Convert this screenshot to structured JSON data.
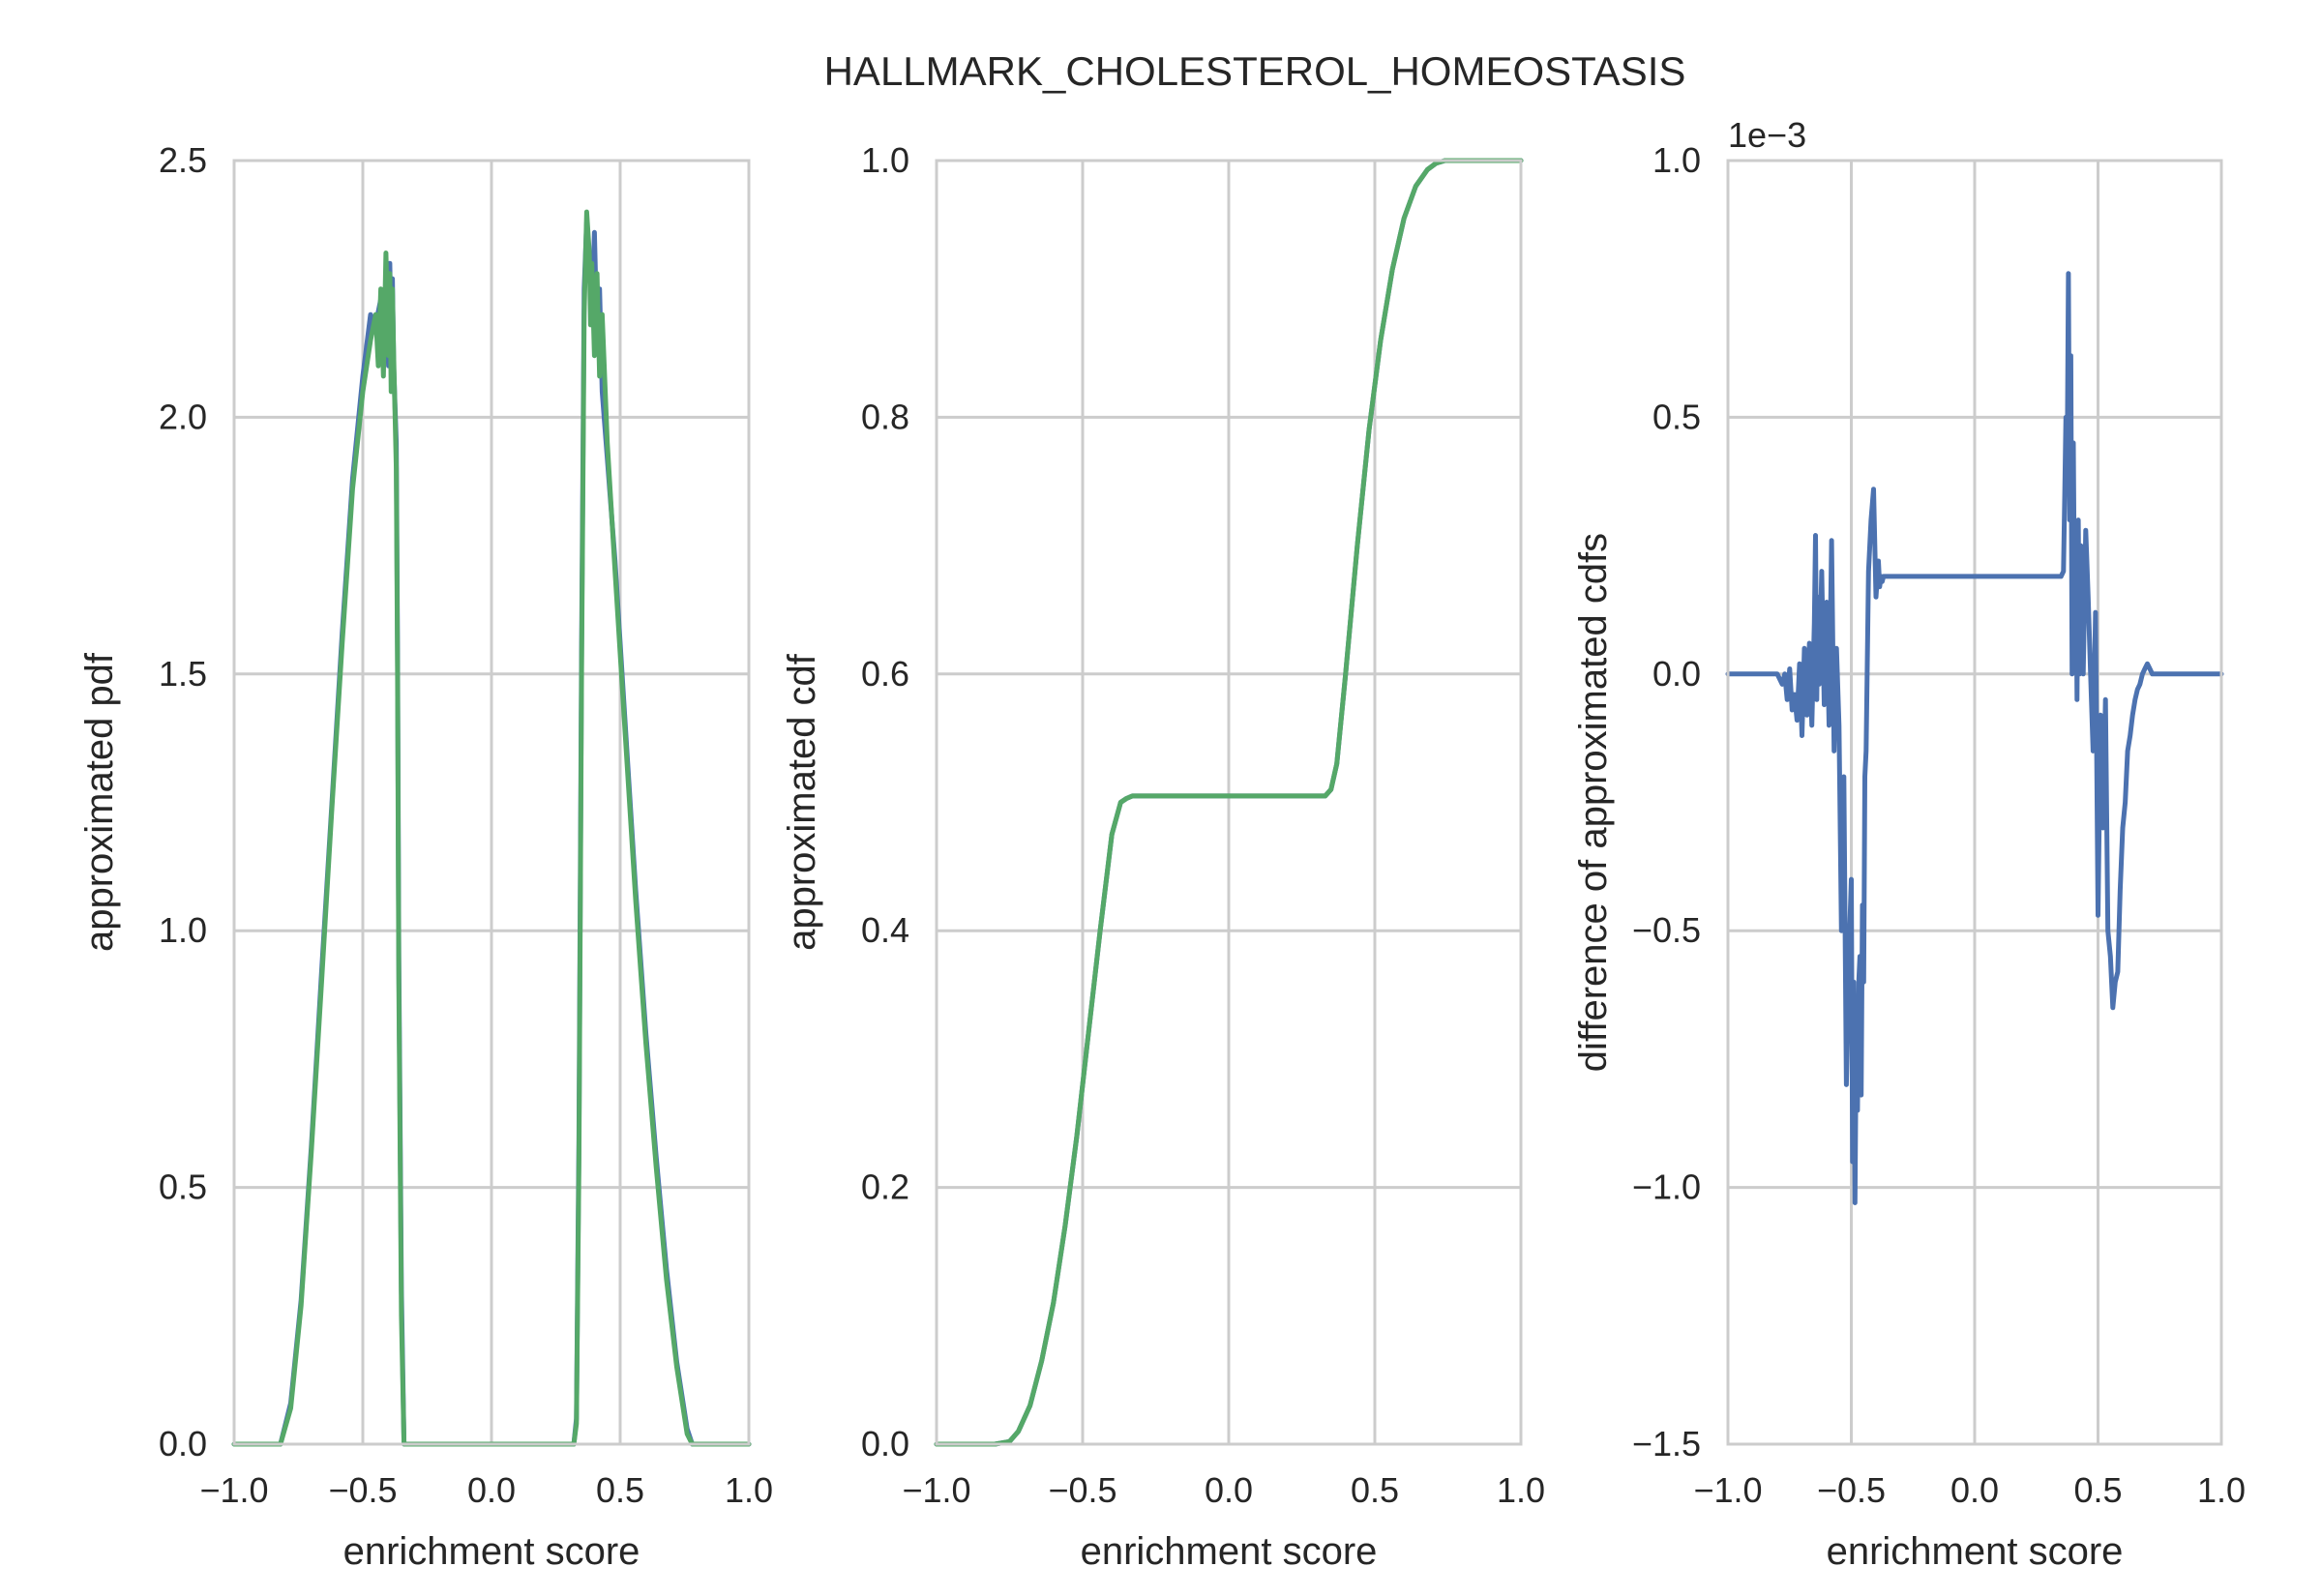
{
  "figure": {
    "title": "HALLMARK_CHOLESTEROL_HOMEOSTASIS"
  },
  "colors": {
    "blue": "#4c72b0",
    "green": "#55a868",
    "grid": "#cccccc",
    "text": "#262626"
  },
  "chart_data": [
    {
      "type": "line",
      "xlabel": "enrichment score",
      "ylabel": "approximated pdf",
      "xlim": [
        -1.0,
        1.0
      ],
      "ylim": [
        0.0,
        2.5
      ],
      "xticks": [
        "−1.0",
        "−0.5",
        "0.0",
        "0.5",
        "1.0"
      ],
      "yticks": [
        "0.0",
        "0.5",
        "1.0",
        "1.5",
        "2.0",
        "2.5"
      ],
      "grid": true,
      "series": [
        {
          "color": "#4c72b0",
          "x": [
            -1.0,
            -0.82,
            -0.78,
            -0.74,
            -0.7,
            -0.66,
            -0.62,
            -0.58,
            -0.54,
            -0.5,
            -0.47,
            -0.45,
            -0.43,
            -0.42,
            -0.41,
            -0.4,
            -0.395,
            -0.39,
            -0.385,
            -0.38,
            -0.37,
            -0.365,
            -0.36,
            -0.35,
            -0.34,
            -0.32,
            0.32,
            0.33,
            0.34,
            0.35,
            0.36,
            0.37,
            0.38,
            0.39,
            0.4,
            0.41,
            0.42,
            0.43,
            0.45,
            0.48,
            0.52,
            0.56,
            0.6,
            0.64,
            0.68,
            0.72,
            0.76,
            0.78,
            1.0
          ],
          "y": [
            0.0,
            0.0,
            0.08,
            0.28,
            0.58,
            0.92,
            1.25,
            1.58,
            1.88,
            2.08,
            2.2,
            2.18,
            2.23,
            2.12,
            2.28,
            2.1,
            2.3,
            2.15,
            2.27,
            2.1,
            1.95,
            1.55,
            0.95,
            0.3,
            0.0,
            0.0,
            0.0,
            0.05,
            0.6,
            1.55,
            2.25,
            2.38,
            2.3,
            2.2,
            2.36,
            2.15,
            2.25,
            2.05,
            1.92,
            1.72,
            1.4,
            1.08,
            0.8,
            0.56,
            0.34,
            0.16,
            0.03,
            0.0,
            0.0
          ]
        },
        {
          "color": "#55a868",
          "x": [
            -1.0,
            -0.82,
            -0.78,
            -0.74,
            -0.7,
            -0.66,
            -0.62,
            -0.58,
            -0.54,
            -0.5,
            -0.47,
            -0.45,
            -0.44,
            -0.43,
            -0.42,
            -0.41,
            -0.4,
            -0.395,
            -0.39,
            -0.385,
            -0.38,
            -0.37,
            -0.365,
            -0.36,
            -0.35,
            -0.34,
            -0.32,
            0.32,
            0.33,
            0.34,
            0.35,
            0.36,
            0.37,
            0.38,
            0.385,
            0.39,
            0.4,
            0.41,
            0.42,
            0.43,
            0.45,
            0.48,
            0.52,
            0.56,
            0.6,
            0.64,
            0.68,
            0.72,
            0.76,
            0.78,
            1.0
          ],
          "y": [
            0.0,
            0.0,
            0.07,
            0.27,
            0.57,
            0.9,
            1.24,
            1.56,
            1.86,
            2.05,
            2.15,
            2.2,
            2.1,
            2.25,
            2.08,
            2.32,
            2.12,
            2.28,
            2.05,
            2.25,
            2.12,
            1.9,
            1.5,
            0.9,
            0.25,
            0.0,
            0.0,
            0.0,
            0.04,
            0.55,
            1.5,
            2.2,
            2.4,
            2.32,
            2.18,
            2.3,
            2.12,
            2.28,
            2.08,
            2.2,
            1.95,
            1.7,
            1.38,
            1.06,
            0.78,
            0.54,
            0.32,
            0.15,
            0.02,
            0.0,
            0.0
          ]
        }
      ]
    },
    {
      "type": "line",
      "xlabel": "enrichment score",
      "ylabel": "approximated cdf",
      "xlim": [
        -1.0,
        1.0
      ],
      "ylim": [
        0.0,
        1.0
      ],
      "xticks": [
        "−1.0",
        "−0.5",
        "0.0",
        "0.5",
        "1.0"
      ],
      "yticks": [
        "0.0",
        "0.2",
        "0.4",
        "0.6",
        "0.8",
        "1.0"
      ],
      "grid": true,
      "series": [
        {
          "color": "#4c72b0",
          "x": [
            -1.0,
            -0.8,
            -0.75,
            -0.72,
            -0.68,
            -0.64,
            -0.6,
            -0.56,
            -0.52,
            -0.48,
            -0.44,
            -0.4,
            -0.37,
            -0.35,
            -0.33,
            0.33,
            0.35,
            0.37,
            0.4,
            0.44,
            0.48,
            0.52,
            0.56,
            0.6,
            0.64,
            0.68,
            0.71,
            0.74,
            0.78,
            1.0
          ],
          "y": [
            0.0,
            0.0,
            0.002,
            0.01,
            0.03,
            0.065,
            0.11,
            0.17,
            0.24,
            0.32,
            0.4,
            0.475,
            0.5,
            0.503,
            0.505,
            0.505,
            0.51,
            0.53,
            0.6,
            0.7,
            0.79,
            0.86,
            0.915,
            0.955,
            0.98,
            0.993,
            0.998,
            1.0,
            1.0,
            1.0
          ]
        },
        {
          "color": "#55a868",
          "x": [
            -1.0,
            -0.8,
            -0.75,
            -0.72,
            -0.68,
            -0.64,
            -0.6,
            -0.56,
            -0.52,
            -0.48,
            -0.44,
            -0.4,
            -0.37,
            -0.35,
            -0.33,
            0.33,
            0.35,
            0.37,
            0.4,
            0.44,
            0.48,
            0.52,
            0.56,
            0.6,
            0.64,
            0.68,
            0.71,
            0.74,
            0.78,
            1.0
          ],
          "y": [
            0.0,
            0.0,
            0.002,
            0.01,
            0.03,
            0.065,
            0.11,
            0.17,
            0.24,
            0.32,
            0.4,
            0.475,
            0.5,
            0.503,
            0.505,
            0.505,
            0.51,
            0.53,
            0.6,
            0.7,
            0.79,
            0.86,
            0.915,
            0.955,
            0.98,
            0.993,
            0.998,
            1.0,
            1.0,
            1.0
          ]
        }
      ]
    },
    {
      "type": "line",
      "xlabel": "enrichment score",
      "ylabel": "difference of approximated cdfs",
      "offset_label": "1e−3",
      "xlim": [
        -1.0,
        1.0
      ],
      "ylim": [
        -1.5,
        1.0
      ],
      "xticks": [
        "−1.0",
        "−0.5",
        "0.0",
        "0.5",
        "1.0"
      ],
      "yticks": [
        "−1.5",
        "−1.0",
        "−0.5",
        "0.0",
        "0.5",
        "1.0"
      ],
      "grid": true,
      "series": [
        {
          "color": "#4c72b0",
          "x": [
            -1.0,
            -0.8,
            -0.78,
            -0.77,
            -0.76,
            -0.75,
            -0.74,
            -0.73,
            -0.72,
            -0.71,
            -0.7,
            -0.69,
            -0.68,
            -0.67,
            -0.66,
            -0.65,
            -0.645,
            -0.64,
            -0.635,
            -0.63,
            -0.62,
            -0.61,
            -0.6,
            -0.59,
            -0.58,
            -0.57,
            -0.56,
            -0.55,
            -0.54,
            -0.53,
            -0.52,
            -0.51,
            -0.5,
            -0.495,
            -0.49,
            -0.485,
            -0.48,
            -0.475,
            -0.47,
            -0.465,
            -0.46,
            -0.455,
            -0.45,
            -0.445,
            -0.44,
            -0.43,
            -0.42,
            -0.41,
            -0.4,
            -0.39,
            -0.385,
            -0.38,
            -0.375,
            -0.37,
            -0.36,
            -0.35,
            0.34,
            0.35,
            0.36,
            0.365,
            0.37,
            0.375,
            0.38,
            0.385,
            0.39,
            0.395,
            0.4,
            0.405,
            0.41,
            0.415,
            0.42,
            0.425,
            0.43,
            0.44,
            0.45,
            0.46,
            0.47,
            0.48,
            0.49,
            0.5,
            0.51,
            0.52,
            0.53,
            0.54,
            0.55,
            0.56,
            0.57,
            0.58,
            0.59,
            0.6,
            0.61,
            0.62,
            0.63,
            0.64,
            0.65,
            0.66,
            0.67,
            0.68,
            0.69,
            0.7,
            0.71,
            0.72,
            0.73,
            0.74,
            0.75,
            0.76,
            0.77,
            0.78,
            0.79,
            0.8,
            0.82,
            1.0
          ],
          "y": [
            0.0,
            0.0,
            -0.02,
            0.0,
            -0.05,
            0.01,
            -0.07,
            -0.04,
            -0.09,
            0.02,
            -0.12,
            0.05,
            -0.08,
            0.06,
            -0.1,
            0.1,
            0.27,
            -0.05,
            0.15,
            -0.02,
            0.2,
            -0.06,
            0.14,
            -0.1,
            0.26,
            -0.15,
            0.05,
            -0.1,
            -0.5,
            -0.2,
            -0.8,
            -0.55,
            -0.4,
            -0.95,
            -0.6,
            -1.03,
            -0.7,
            -0.85,
            -0.6,
            -0.55,
            -0.82,
            -0.45,
            -0.6,
            -0.2,
            -0.15,
            0.2,
            0.3,
            0.36,
            0.15,
            0.22,
            0.17,
            0.19,
            0.18,
            0.19,
            0.19,
            0.19,
            0.19,
            0.19,
            0.2,
            0.35,
            0.5,
            0.4,
            0.78,
            0.3,
            0.62,
            0.0,
            0.45,
            0.1,
            0.28,
            -0.05,
            0.3,
            0.0,
            0.25,
            0.0,
            0.28,
            0.15,
            0.0,
            -0.15,
            0.12,
            -0.47,
            -0.08,
            -0.3,
            -0.05,
            -0.5,
            -0.55,
            -0.65,
            -0.6,
            -0.58,
            -0.42,
            -0.3,
            -0.25,
            -0.15,
            -0.12,
            -0.08,
            -0.05,
            -0.03,
            -0.02,
            0.0,
            0.01,
            0.02,
            0.01,
            0.0,
            0.0,
            0.0,
            0.0,
            0.0,
            0.0,
            0.0,
            0.0,
            0.0,
            0.0,
            0.0
          ]
        }
      ]
    }
  ]
}
